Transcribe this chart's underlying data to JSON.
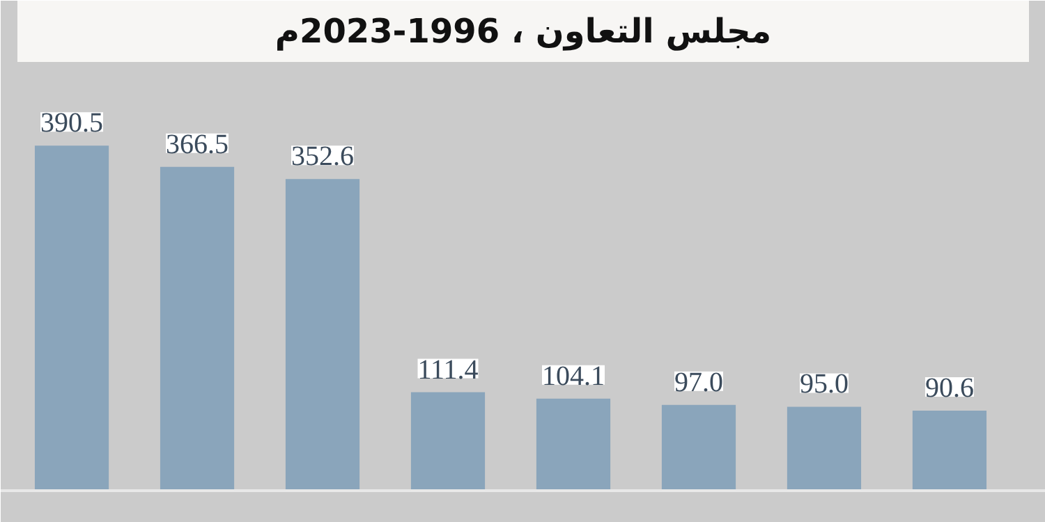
{
  "chart_data": {
    "type": "bar",
    "title": "مجلس التعاون ، 1996-2023م",
    "categories": [
      null,
      null,
      null,
      null,
      null,
      null,
      null,
      null
    ],
    "values": [
      390.5,
      366.5,
      352.6,
      111.4,
      104.1,
      97.0,
      95.0,
      90.6
    ],
    "value_labels": [
      "390.5",
      "366.5",
      "352.6",
      "111.4",
      "104.1",
      "97.0",
      "95.0",
      "90.6"
    ],
    "color": "#8aa5bb"
  }
}
